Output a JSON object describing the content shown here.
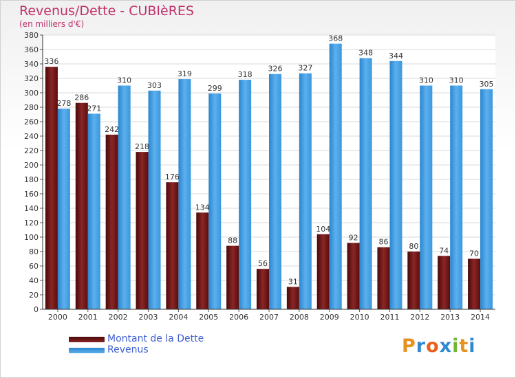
{
  "title": "Revenus/Dette - CUBIèRES",
  "subtitle": "(en milliers d'€)",
  "logo": {
    "letters": [
      "P",
      "r",
      "o",
      "x",
      "i",
      "t",
      "i"
    ],
    "colors": [
      "#e89020",
      "#2f89d0",
      "#e86020",
      "#2f89d0",
      "#70b830",
      "#e89020",
      "#2f89d0"
    ]
  },
  "chart_data": {
    "type": "bar",
    "title": "Revenus/Dette - CUBIèRES",
    "subtitle": "(en milliers d'€)",
    "categories": [
      "2000",
      "2001",
      "2002",
      "2003",
      "2004",
      "2005",
      "2006",
      "2007",
      "2008",
      "2009",
      "2010",
      "2011",
      "2012",
      "2013",
      "2014"
    ],
    "series": [
      {
        "name": "Montant de la Dette",
        "color": "#7a1a1a",
        "values": [
          336,
          286,
          242,
          218,
          176,
          134,
          88,
          56,
          31,
          104,
          92,
          86,
          80,
          74,
          70
        ]
      },
      {
        "name": "Revenus",
        "color": "#3a9be0",
        "values": [
          278,
          271,
          310,
          303,
          319,
          299,
          318,
          326,
          327,
          368,
          348,
          344,
          310,
          310,
          305
        ]
      }
    ],
    "ylim": [
      0,
      380
    ],
    "ytick_step": 20,
    "grid": true,
    "legend_position": "bottom-left",
    "show_data_labels": true
  }
}
